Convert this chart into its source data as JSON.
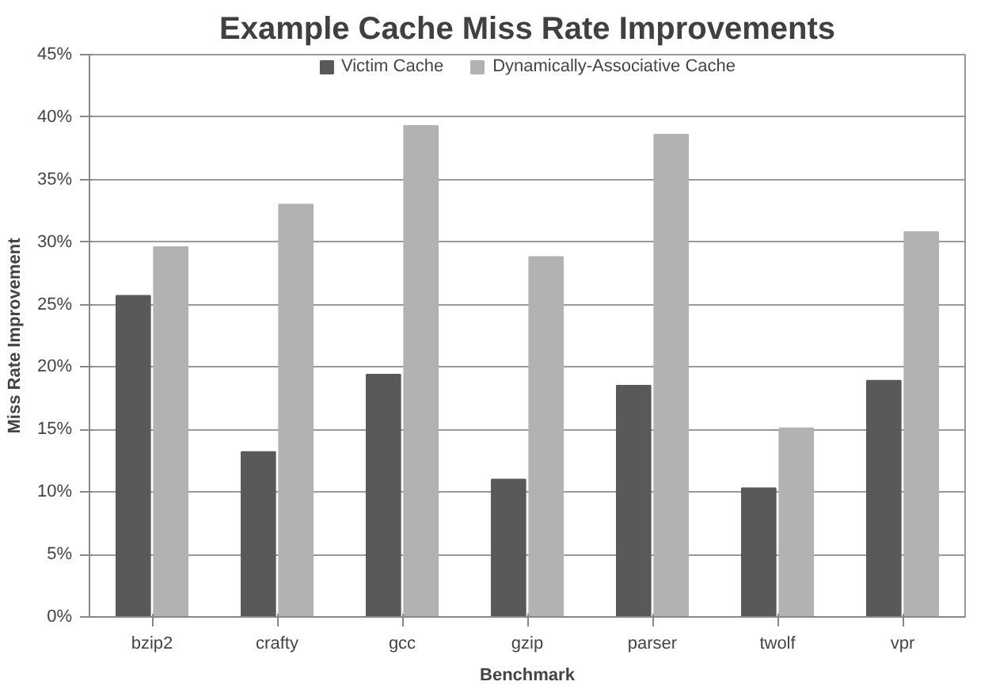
{
  "chart_data": {
    "type": "bar",
    "title": "Example Cache Miss Rate Improvements",
    "xlabel": "Benchmark",
    "ylabel": "Miss Rate Improvement",
    "categories": [
      "bzip2",
      "crafty",
      "gcc",
      "gzip",
      "parser",
      "twolf",
      "vpr"
    ],
    "series": [
      {
        "name": "Victim Cache",
        "color": "#595959",
        "values": [
          25.7,
          13.2,
          19.4,
          11.0,
          18.5,
          10.3,
          18.9
        ]
      },
      {
        "name": "Dynamically-Associative Cache",
        "color": "#b2b2b2",
        "values": [
          29.6,
          33.0,
          39.3,
          28.8,
          38.6,
          15.1,
          30.8
        ]
      }
    ],
    "ylim": [
      0,
      45
    ],
    "yticks": [
      {
        "value": 0,
        "label": "0%"
      },
      {
        "value": 5,
        "label": "5%"
      },
      {
        "value": 10,
        "label": "10%"
      },
      {
        "value": 15,
        "label": "15%"
      },
      {
        "value": 20,
        "label": "20%"
      },
      {
        "value": 25,
        "label": "25%"
      },
      {
        "value": 30,
        "label": "30%"
      },
      {
        "value": 35,
        "label": "35%"
      },
      {
        "value": 40,
        "label": "40%"
      },
      {
        "value": 45,
        "label": "45%"
      }
    ],
    "grid": "y",
    "legend": "top"
  }
}
